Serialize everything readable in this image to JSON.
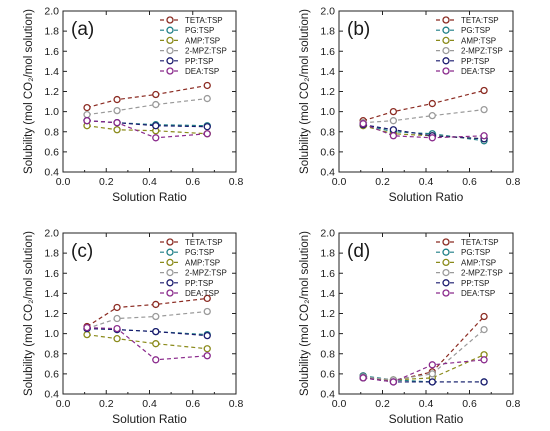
{
  "figure": {
    "panels_order": [
      "a",
      "b",
      "c",
      "d"
    ]
  },
  "chart_data": [
    {
      "panel": "(a)",
      "type": "line",
      "xlabel": "Solution Ratio",
      "ylabel": "Solubility (mol CO₂/mol solution)",
      "xlim": [
        0.0,
        0.8
      ],
      "ylim": [
        0.4,
        2.0
      ],
      "xticks": [
        "0.0",
        "0.2",
        "0.4",
        "0.6",
        "0.8"
      ],
      "yticks": [
        "0.4",
        "0.6",
        "0.8",
        "1.0",
        "1.2",
        "1.4",
        "1.6",
        "1.8",
        "2.0"
      ],
      "legend_position": "top-right",
      "grid": false,
      "x": [
        0.111,
        0.25,
        0.429,
        0.667
      ],
      "series": [
        {
          "name": "TETA:TSP",
          "color": "#8b2b22",
          "values": [
            1.04,
            1.12,
            1.17,
            1.26
          ]
        },
        {
          "name": "PG:TSP",
          "color": "#1f7f86",
          "values": [
            0.91,
            0.89,
            0.87,
            0.86
          ]
        },
        {
          "name": "AMP:TSP",
          "color": "#8a8a1a",
          "values": [
            0.86,
            0.82,
            0.81,
            0.78
          ]
        },
        {
          "name": "2-MPZ:TSP",
          "color": "#9a9a9a",
          "values": [
            0.97,
            1.01,
            1.07,
            1.13
          ]
        },
        {
          "name": "PP:TSP",
          "color": "#1a1a6e",
          "values": [
            0.91,
            0.89,
            0.86,
            0.85
          ]
        },
        {
          "name": "DEA:TSP",
          "color": "#8a2a8c",
          "values": [
            0.91,
            0.89,
            0.74,
            0.78
          ]
        }
      ]
    },
    {
      "panel": "(b)",
      "type": "line",
      "xlabel": "Solution Ratio",
      "ylabel": "Solubility (mol CO₂/mol solution)",
      "xlim": [
        0.0,
        0.8
      ],
      "ylim": [
        0.4,
        2.0
      ],
      "xticks": [
        "0.0",
        "0.2",
        "0.4",
        "0.6",
        "0.8"
      ],
      "yticks": [
        "0.4",
        "0.6",
        "0.8",
        "1.0",
        "1.2",
        "1.4",
        "1.6",
        "1.8",
        "2.0"
      ],
      "legend_position": "top-right",
      "grid": false,
      "x": [
        0.111,
        0.25,
        0.429,
        0.667
      ],
      "series": [
        {
          "name": "TETA:TSP",
          "color": "#8b2b22",
          "values": [
            0.91,
            1.0,
            1.08,
            1.21
          ]
        },
        {
          "name": "PG:TSP",
          "color": "#1f7f86",
          "values": [
            0.87,
            0.8,
            0.78,
            0.71
          ]
        },
        {
          "name": "AMP:TSP",
          "color": "#8a8a1a",
          "values": [
            0.86,
            0.78,
            0.76,
            0.73
          ]
        },
        {
          "name": "2-MPZ:TSP",
          "color": "#9a9a9a",
          "values": [
            0.89,
            0.91,
            0.96,
            1.02
          ]
        },
        {
          "name": "PP:TSP",
          "color": "#1a1a6e",
          "values": [
            0.87,
            0.82,
            0.76,
            0.73
          ]
        },
        {
          "name": "DEA:TSP",
          "color": "#8a2a8c",
          "values": [
            0.88,
            0.76,
            0.74,
            0.76
          ]
        }
      ]
    },
    {
      "panel": "(c)",
      "type": "line",
      "xlabel": "Solution Ratio",
      "ylabel": "Solubility (mol CO₂/mol solution)",
      "xlim": [
        0.0,
        0.8
      ],
      "ylim": [
        0.4,
        2.0
      ],
      "xticks": [
        "0.0",
        "0.2",
        "0.4",
        "0.6",
        "0.8"
      ],
      "yticks": [
        "0.4",
        "0.6",
        "0.8",
        "1.0",
        "1.2",
        "1.4",
        "1.6",
        "1.8",
        "2.0"
      ],
      "legend_position": "top-right",
      "grid": false,
      "x": [
        0.111,
        0.25,
        0.429,
        0.667
      ],
      "series": [
        {
          "name": "TETA:TSP",
          "color": "#8b2b22",
          "values": [
            1.07,
            1.26,
            1.29,
            1.35
          ]
        },
        {
          "name": "PG:TSP",
          "color": "#1f7f86",
          "values": [
            1.05,
            1.04,
            1.02,
            0.99
          ]
        },
        {
          "name": "AMP:TSP",
          "color": "#8a8a1a",
          "values": [
            0.99,
            0.95,
            0.9,
            0.85
          ]
        },
        {
          "name": "2-MPZ:TSP",
          "color": "#9a9a9a",
          "values": [
            1.05,
            1.15,
            1.17,
            1.22
          ]
        },
        {
          "name": "PP:TSP",
          "color": "#1a1a6e",
          "values": [
            1.05,
            1.04,
            1.02,
            0.98
          ]
        },
        {
          "name": "DEA:TSP",
          "color": "#8a2a8c",
          "values": [
            1.06,
            1.05,
            0.74,
            0.78
          ]
        }
      ]
    },
    {
      "panel": "(d)",
      "type": "line",
      "xlabel": "Solution Ratio",
      "ylabel": "Solubility (mol CO₂/mol solution)",
      "xlim": [
        0.0,
        0.8
      ],
      "ylim": [
        0.4,
        2.0
      ],
      "xticks": [
        "0.0",
        "0.2",
        "0.4",
        "0.6",
        "0.8"
      ],
      "yticks": [
        "0.4",
        "0.6",
        "0.8",
        "1.0",
        "1.2",
        "1.4",
        "1.6",
        "1.8",
        "2.0"
      ],
      "legend_position": "top-right",
      "grid": false,
      "x": [
        0.111,
        0.25,
        0.429,
        0.667
      ],
      "series": [
        {
          "name": "TETA:TSP",
          "color": "#8b2b22",
          "values": [
            0.58,
            0.53,
            0.62,
            1.17
          ]
        },
        {
          "name": "PG:TSP",
          "color": "#1f7f86",
          "values": [
            0.58,
            0.54,
            0.52,
            0.52
          ]
        },
        {
          "name": "AMP:TSP",
          "color": "#8a8a1a",
          "values": [
            0.56,
            0.54,
            0.56,
            0.79
          ]
        },
        {
          "name": "2-MPZ:TSP",
          "color": "#9a9a9a",
          "values": [
            0.57,
            0.54,
            0.6,
            1.04
          ]
        },
        {
          "name": "PP:TSP",
          "color": "#1a1a6e",
          "values": [
            0.56,
            0.52,
            0.52,
            0.52
          ]
        },
        {
          "name": "DEA:TSP",
          "color": "#8a2a8c",
          "values": [
            0.56,
            0.52,
            0.69,
            0.74
          ]
        }
      ]
    }
  ]
}
